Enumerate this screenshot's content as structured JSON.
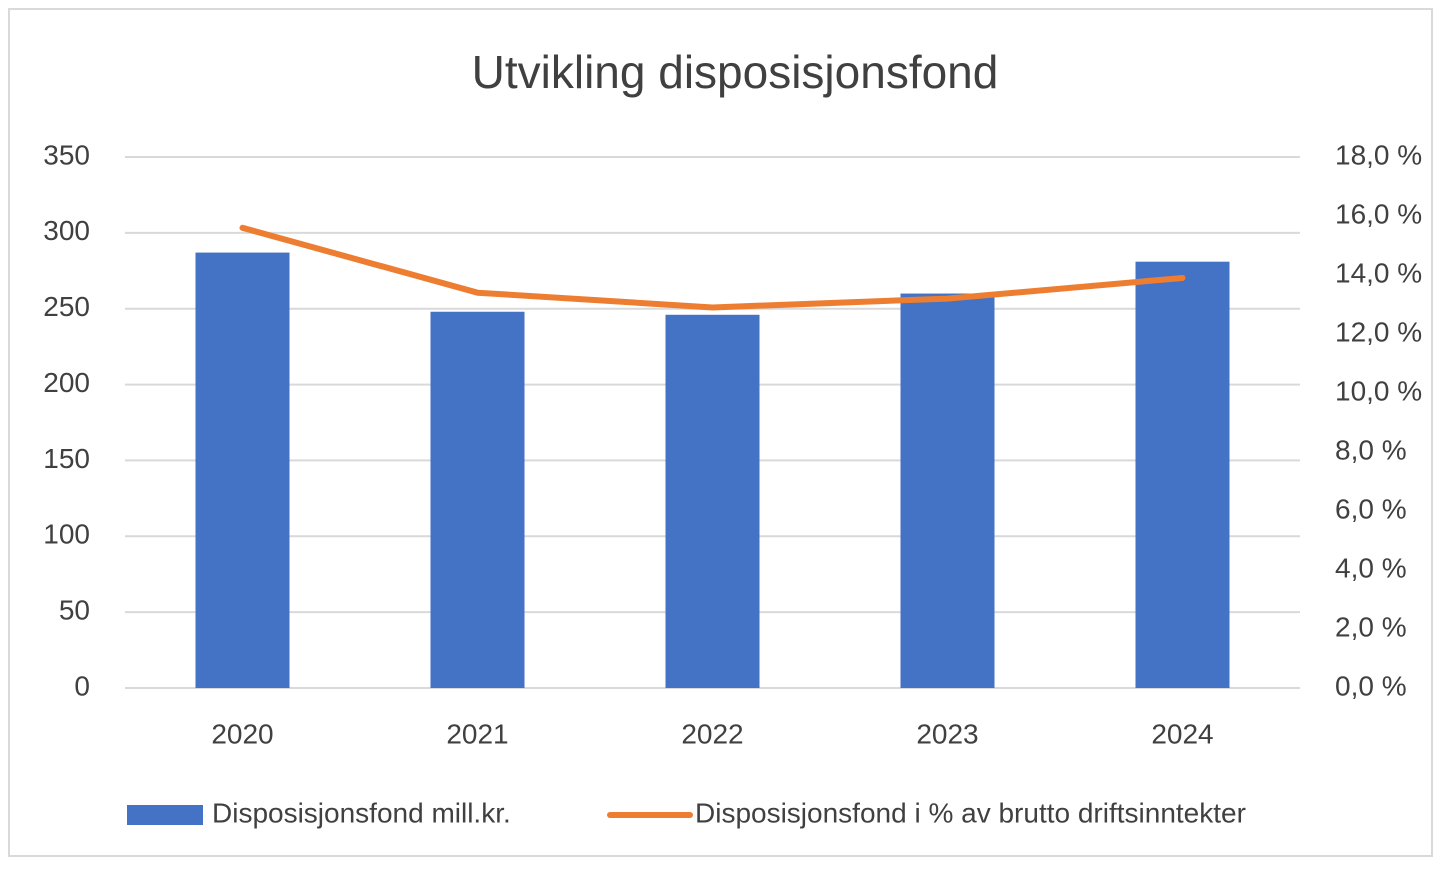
{
  "chart_data": {
    "type": "bar-line",
    "title": "Utvikling disposisjonsfond",
    "categories": [
      "2020",
      "2021",
      "2022",
      "2023",
      "2024"
    ],
    "series": [
      {
        "name": "Disposisjonsfond mill.kr.",
        "type": "bar",
        "color": "#4472c4",
        "values": [
          287,
          248,
          246,
          260,
          281
        ]
      },
      {
        "name": "Disposisjonsfond i % av brutto driftsinntekter",
        "type": "line",
        "axis": "y2",
        "color": "#ed7d31",
        "values": [
          15.6,
          13.4,
          12.9,
          13.2,
          13.9
        ]
      }
    ],
    "ylim": [
      0,
      350
    ],
    "yticks": [
      0,
      50,
      100,
      150,
      200,
      250,
      300,
      350
    ],
    "y2lim": [
      0,
      18
    ],
    "y2ticks": [
      {
        "value": 0,
        "label": "0,0 %"
      },
      {
        "value": 2,
        "label": "2,0 %"
      },
      {
        "value": 4,
        "label": "4,0 %"
      },
      {
        "value": 6,
        "label": "6,0 %"
      },
      {
        "value": 8,
        "label": "8,0 %"
      },
      {
        "value": 10,
        "label": "10,0 %"
      },
      {
        "value": 12,
        "label": "12,0 %"
      },
      {
        "value": 14,
        "label": "14,0 %"
      },
      {
        "value": 16,
        "label": "16,0 %"
      },
      {
        "value": 18,
        "label": "18,0 %"
      }
    ],
    "grid": true,
    "legend": "bottom"
  }
}
